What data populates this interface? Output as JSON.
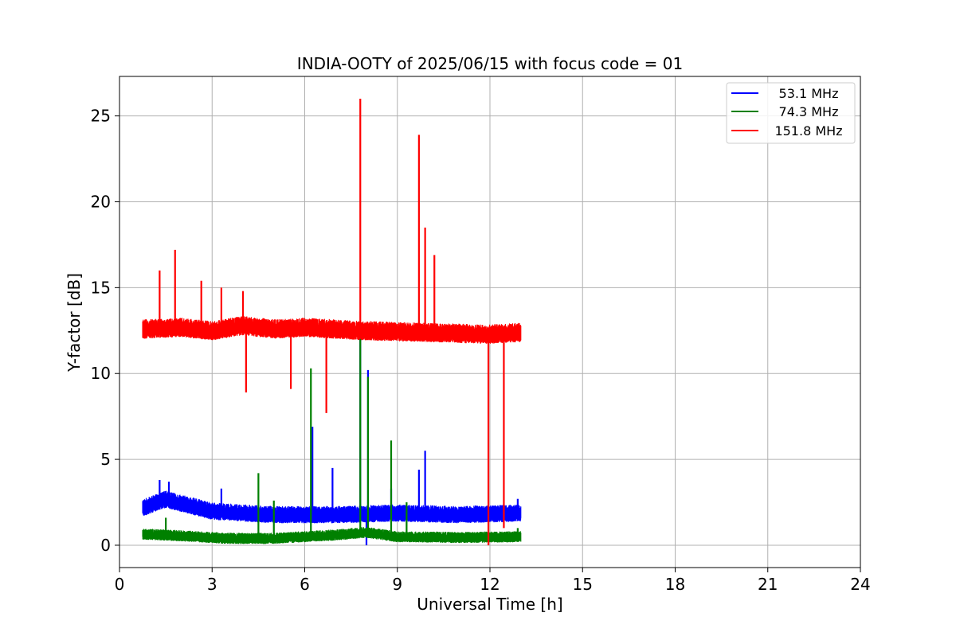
{
  "chart_data": {
    "type": "line",
    "title": "INDIA-OOTY of 2025/06/15 with focus code = 01",
    "xlabel": "Universal Time [h]",
    "ylabel": "Y-factor [dB]",
    "xlim": [
      0,
      24
    ],
    "ylim": [
      -1.3,
      27.3
    ],
    "xticks": [
      0,
      3,
      6,
      9,
      12,
      15,
      18,
      21,
      24
    ],
    "yticks": [
      0,
      5,
      10,
      15,
      20,
      25
    ],
    "grid": true,
    "legend_position": "top-right",
    "series": [
      {
        "name": "53.1 MHz",
        "color": "#0000ff",
        "x_start": 0.75,
        "x_end": 13.0,
        "baseline_points": [
          [
            0.75,
            2.1
          ],
          [
            1.5,
            2.6
          ],
          [
            3.0,
            1.9
          ],
          [
            5.0,
            1.7
          ],
          [
            7.0,
            1.7
          ],
          [
            9.0,
            1.8
          ],
          [
            11.0,
            1.7
          ],
          [
            13.0,
            1.8
          ]
        ],
        "noise": 0.4,
        "spikes": [
          [
            1.3,
            3.8
          ],
          [
            1.6,
            3.7
          ],
          [
            3.3,
            3.3
          ],
          [
            6.25,
            6.9
          ],
          [
            6.9,
            4.5
          ],
          [
            7.8,
            12.1
          ],
          [
            8.05,
            10.2
          ],
          [
            8.0,
            0.0
          ],
          [
            8.8,
            3.3
          ],
          [
            9.7,
            4.4
          ],
          [
            9.9,
            5.5
          ],
          [
            12.9,
            2.7
          ]
        ]
      },
      {
        "name": "74.3 MHz",
        "color": "#008000",
        "x_start": 0.75,
        "x_end": 13.0,
        "baseline_points": [
          [
            0.75,
            0.6
          ],
          [
            2.0,
            0.5
          ],
          [
            3.5,
            0.35
          ],
          [
            5.0,
            0.35
          ],
          [
            7.0,
            0.55
          ],
          [
            8.0,
            0.7
          ],
          [
            9.0,
            0.45
          ],
          [
            11.0,
            0.4
          ],
          [
            13.0,
            0.45
          ]
        ],
        "noise": 0.25,
        "spikes": [
          [
            1.5,
            1.6
          ],
          [
            4.5,
            4.2
          ],
          [
            5.0,
            2.6
          ],
          [
            6.2,
            10.3
          ],
          [
            7.8,
            12.2
          ],
          [
            8.05,
            9.8
          ],
          [
            8.8,
            6.1
          ],
          [
            9.3,
            2.5
          ],
          [
            12.9,
            1.0
          ]
        ]
      },
      {
        "name": "151.8 MHz",
        "color": "#ff0000",
        "x_start": 0.75,
        "x_end": 13.0,
        "baseline_points": [
          [
            0.75,
            12.5
          ],
          [
            2.0,
            12.6
          ],
          [
            3.0,
            12.4
          ],
          [
            4.0,
            12.7
          ],
          [
            5.0,
            12.5
          ],
          [
            6.0,
            12.6
          ],
          [
            8.0,
            12.4
          ],
          [
            10.0,
            12.3
          ],
          [
            12.0,
            12.2
          ],
          [
            13.0,
            12.3
          ]
        ],
        "noise": 0.45,
        "spikes": [
          [
            1.3,
            16.0
          ],
          [
            1.8,
            17.2
          ],
          [
            2.65,
            15.4
          ],
          [
            3.3,
            15.0
          ],
          [
            4.0,
            14.8
          ],
          [
            4.1,
            8.9
          ],
          [
            5.55,
            9.1
          ],
          [
            6.7,
            7.7
          ],
          [
            7.8,
            26.0
          ],
          [
            9.7,
            23.9
          ],
          [
            9.9,
            18.5
          ],
          [
            10.2,
            16.9
          ],
          [
            11.95,
            0.0
          ],
          [
            12.45,
            1.0
          ]
        ]
      }
    ]
  }
}
